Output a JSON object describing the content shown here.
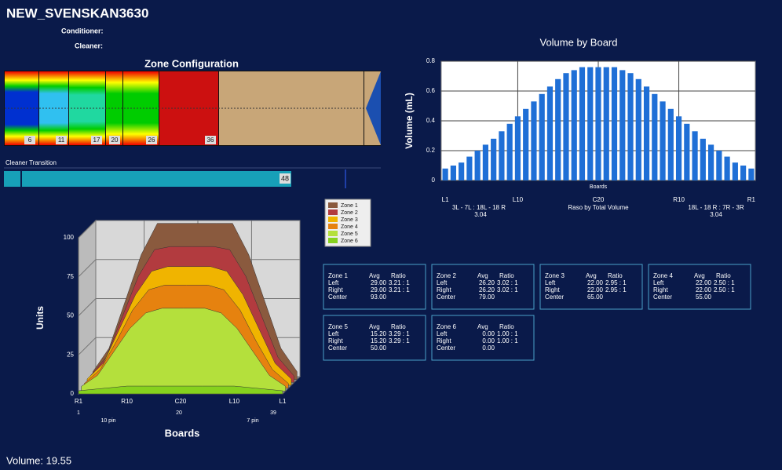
{
  "header": {
    "title": "NEW_SVENSKAN3630",
    "conditioner": "Conditioner:",
    "cleaner": "Cleaner:"
  },
  "zone_config": {
    "title": "Zone Configuration",
    "markers": [
      "6",
      "11",
      "17",
      "20",
      "26",
      "36"
    ]
  },
  "cleaner_transition": {
    "label": "Cleaner Transition",
    "value": "48"
  },
  "chart_data": [
    {
      "type": "bar",
      "title": "Volume by Board",
      "x_label": "Boards",
      "y_label": "Volume (mL)",
      "color": "#1f6fd6",
      "grid": true,
      "categories": [
        "L1",
        null,
        null,
        null,
        null,
        null,
        null,
        null,
        null,
        "L10",
        null,
        null,
        null,
        null,
        null,
        null,
        null,
        null,
        null,
        "C20",
        null,
        null,
        null,
        null,
        null,
        null,
        null,
        null,
        null,
        "R10",
        null,
        null,
        null,
        null,
        null,
        null,
        null,
        null,
        "R1"
      ],
      "values": [
        0.08,
        0.1,
        0.12,
        0.16,
        0.2,
        0.24,
        0.28,
        0.33,
        0.38,
        0.43,
        0.48,
        0.53,
        0.58,
        0.63,
        0.68,
        0.72,
        0.74,
        0.76,
        0.76,
        0.76,
        0.76,
        0.76,
        0.74,
        0.72,
        0.68,
        0.63,
        0.58,
        0.53,
        0.48,
        0.43,
        0.38,
        0.33,
        0.28,
        0.24,
        0.2,
        0.16,
        0.12,
        0.1,
        0.08
      ],
      "ylim": [
        0,
        0.8
      ],
      "yticks": [
        0,
        0.2,
        0.4,
        0.6,
        0.8
      ],
      "annotations": [
        "3L - 7L : 18L - 18 R",
        "3.04",
        "Raso by Total Volume",
        "18L - 18 R : 7R - 3R",
        "3.04"
      ]
    },
    {
      "type": "area3d",
      "x_label": "Boards",
      "y_label": "Units",
      "x": [
        1,
        4,
        7,
        10,
        13,
        16,
        20,
        24,
        27,
        30,
        33,
        36,
        39
      ],
      "xlim": [
        1,
        39
      ],
      "xticks": [
        {
          "value": 1,
          "label": "R1"
        },
        {
          "value": 10,
          "label": "R10"
        },
        {
          "value": 20,
          "label": "C20"
        },
        {
          "value": 30,
          "label": "L10"
        },
        {
          "value": 39,
          "label": "L1"
        }
      ],
      "sub_ticks": [
        "1",
        "10 pin",
        "20",
        "7 pin",
        "39"
      ],
      "ylim": [
        0,
        100
      ],
      "yticks": [
        0,
        25,
        50,
        75,
        100
      ],
      "series": [
        {
          "name": "Zone 1",
          "color": "#8a5a3e",
          "values": [
            5,
            20,
            50,
            80,
            100,
            100,
            100,
            100,
            100,
            80,
            50,
            20,
            5
          ]
        },
        {
          "name": "Zone 2",
          "color": "#b23b3f",
          "values": [
            4,
            16,
            42,
            68,
            85,
            87,
            87,
            87,
            85,
            68,
            42,
            16,
            4
          ]
        },
        {
          "name": "Zone 3",
          "color": "#f0b400",
          "values": [
            4,
            14,
            36,
            58,
            73,
            76,
            76,
            76,
            73,
            58,
            36,
            14,
            4
          ]
        },
        {
          "name": "Zone 4",
          "color": "#e6820f",
          "values": [
            3,
            12,
            30,
            50,
            63,
            66,
            66,
            66,
            63,
            50,
            30,
            12,
            3
          ]
        },
        {
          "name": "Zone 5",
          "color": "#b4e03c",
          "values": [
            3,
            10,
            25,
            40,
            50,
            53,
            53,
            53,
            50,
            40,
            25,
            10,
            3
          ]
        },
        {
          "name": "Zone 6",
          "color": "#86d21e",
          "values": [
            2,
            3,
            4,
            5,
            5,
            5,
            5,
            5,
            5,
            5,
            4,
            3,
            2
          ]
        }
      ]
    }
  ],
  "zone_stats": [
    {
      "name": "Zone 1",
      "avg": "Avg",
      "ratio": "Ratio",
      "rows": [
        [
          "Left",
          "29.00",
          "3.21 : 1"
        ],
        [
          "Right",
          "29.00",
          "3.21 : 1"
        ],
        [
          "Center",
          "93.00"
        ]
      ]
    },
    {
      "name": "Zone 2",
      "avg": "Avg",
      "ratio": "Ratio",
      "rows": [
        [
          "Left",
          "26.20",
          "3.02 : 1"
        ],
        [
          "Right",
          "26.20",
          "3.02 : 1"
        ],
        [
          "Center",
          "79.00"
        ]
      ]
    },
    {
      "name": "Zone 3",
      "avg": "Avg",
      "ratio": "Ratio",
      "rows": [
        [
          "Left",
          "22.00",
          "2.95 : 1"
        ],
        [
          "Right",
          "22.00",
          "2.95 : 1"
        ],
        [
          "Center",
          "65.00"
        ]
      ]
    },
    {
      "name": "Zone 4",
      "avg": "Avg",
      "ratio": "Ratio",
      "rows": [
        [
          "Left",
          "22.00",
          "2.50 : 1"
        ],
        [
          "Right",
          "22.00",
          "2.50 : 1"
        ],
        [
          "Center",
          "55.00"
        ]
      ]
    },
    {
      "name": "Zone 5",
      "avg": "Avg",
      "ratio": "Ratio",
      "rows": [
        [
          "Left",
          "15.20",
          "3.29 : 1"
        ],
        [
          "Right",
          "15.20",
          "3.29 : 1"
        ],
        [
          "Center",
          "50.00"
        ]
      ]
    },
    {
      "name": "Zone 6",
      "avg": "Avg",
      "ratio": "Ratio",
      "rows": [
        [
          "Left",
          "0.00",
          "1.00 : 1"
        ],
        [
          "Right",
          "0.00",
          "1.00 : 1"
        ],
        [
          "Center",
          "0.00"
        ]
      ]
    }
  ],
  "footer": {
    "volume": "Volume: 19.55"
  }
}
